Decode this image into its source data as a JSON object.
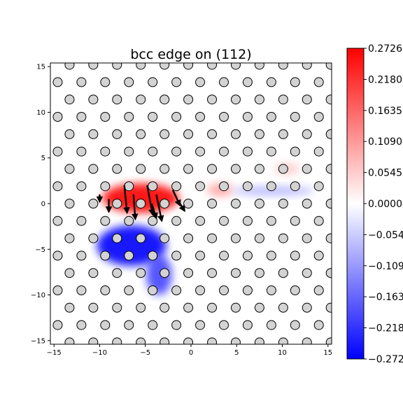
{
  "chart_data": {
    "type": "heatmap",
    "title": "bcc edge on (112)",
    "xlabel": "",
    "ylabel": "",
    "xlim": [
      -15.4,
      15.4
    ],
    "ylim": [
      -15.4,
      15.4
    ],
    "x_ticks": [
      -15,
      -10,
      -5,
      0,
      5,
      10,
      15
    ],
    "y_ticks": [
      -15,
      -10,
      -5,
      0,
      5,
      10,
      15
    ],
    "colormap": "bwr",
    "colorbar": {
      "vmin": -0.2726,
      "vmax": 0.2726,
      "ticks": [
        0.2726,
        0.218,
        0.1635,
        0.109,
        0.0545,
        0.0,
        -0.0545,
        -0.109,
        -0.1635,
        -0.218,
        -0.2726
      ],
      "tick_labels": [
        "0.2726",
        "0.2180",
        "0.1635",
        "0.1090",
        "0.0545",
        "0.0000",
        "−0.0545",
        "−0.1090",
        "−0.1635",
        "−0.2180",
        "−0.2726"
      ],
      "colors": {
        "max": "#ff0000",
        "mid": "#ffffff",
        "min": "#0000ff"
      }
    },
    "atoms": {
      "marker": "circle",
      "fill": "#d3d3d3",
      "edge": "#000000",
      "lattice": {
        "a1": [
          2.6,
          0
        ],
        "a2": [
          1.3,
          1.9
        ],
        "origin": [
          -0.3,
          0.0
        ]
      }
    },
    "regions": [
      {
        "sign": "positive",
        "x": -5.5,
        "y": 0.6,
        "sx": 4.2,
        "sy": 1.6,
        "value": 0.27
      },
      {
        "sign": "positive",
        "x": 3.2,
        "y": 1.5,
        "sx": 1.4,
        "sy": 0.7,
        "value": 0.1
      },
      {
        "sign": "positive",
        "x": 10.5,
        "y": 3.8,
        "sx": 1.4,
        "sy": 0.6,
        "value": 0.06
      },
      {
        "sign": "negative",
        "x": -6.5,
        "y": -4.6,
        "sx": 3.8,
        "sy": 2.2,
        "value": -0.27
      },
      {
        "sign": "negative",
        "x": -3.5,
        "y": -7.8,
        "sx": 1.4,
        "sy": 2.2,
        "value": -0.2
      },
      {
        "sign": "negative",
        "x": 9.0,
        "y": 1.4,
        "sx": 4.5,
        "sy": 0.5,
        "value": -0.08
      }
    ],
    "arrows": [
      {
        "x": -7.3,
        "y": 2.0,
        "dx": 0.3,
        "dy": -3.0
      },
      {
        "x": -6.3,
        "y": 1.0,
        "dx": 0.2,
        "dy": -2.7
      },
      {
        "x": -4.8,
        "y": 2.0,
        "dx": 0.6,
        "dy": -3.2
      },
      {
        "x": -3.8,
        "y": 1.0,
        "dx": 0.6,
        "dy": -2.9
      },
      {
        "x": -4.3,
        "y": 0.0,
        "dx": 0.5,
        "dy": -1.6
      },
      {
        "x": -2.0,
        "y": 1.5,
        "dx": 0.8,
        "dy": -1.7
      },
      {
        "x": -9.0,
        "y": 0.5,
        "dx": 0.0,
        "dy": -1.4
      },
      {
        "x": -10.0,
        "y": 1.0,
        "dx": 0.0,
        "dy": -0.8
      },
      {
        "x": -1.2,
        "y": 0.0,
        "dx": 0.5,
        "dy": -0.8
      }
    ]
  }
}
